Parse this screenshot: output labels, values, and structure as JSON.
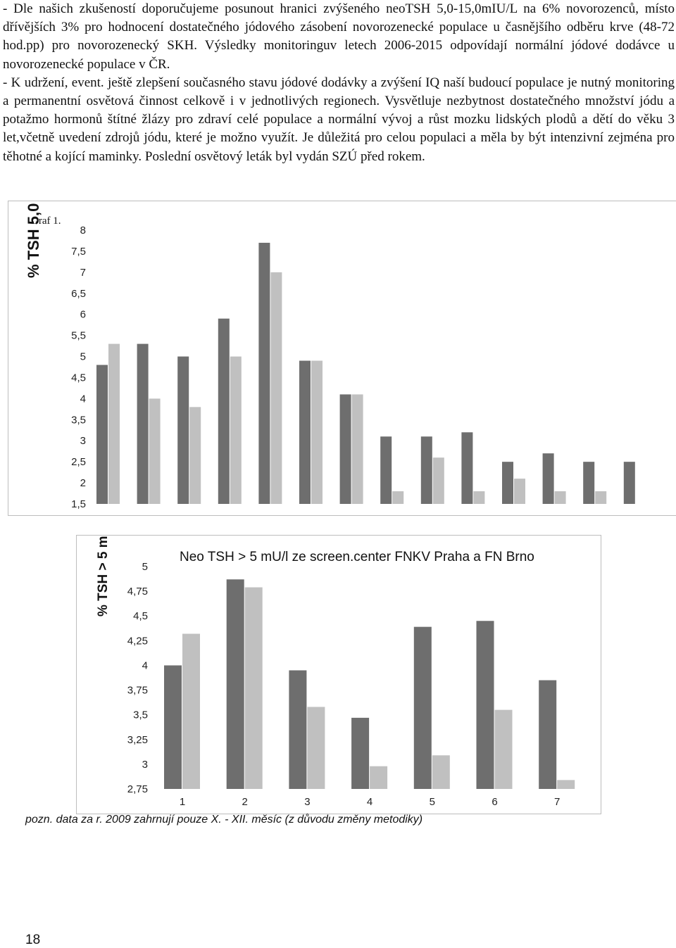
{
  "paragraphs": {
    "p1": "- Dle našich zkušeností doporučujeme posunout hranici zvýšeného neoTSH 5,0-15,0mIU/L na 6% novorozenců, místo dřívějších 3% pro hodnocení dostatečného jódového zásobení novorozenecké populace u časnějšího odběru krve (48-72 hod.pp) pro novorozenecký SKH. Výsledky monitoringuv letech 2006-2015 odpovídají normální jódové dodávce u novorozenecké populace v ČR.",
    "p2": "- K udržení, event. ještě zlepšení současného stavu jódové dodávky a zvýšení IQ naší budoucí populace je nutný monitoring a permanentní osvětová činnost celkově i v jednotlivých regionech. Vysvětluje nezbytnost dostatečného množství jódu a potažmo hormonů štítné žlázy pro zdraví celé populace a normální vývoj a růst mozku lidských plodů a dětí do věku 3 let,včetně uvedení zdrojů jódu, které je možno využít. Je důležitá pro celou populaci a měla by být intenzivní zejména pro těhotné a kojící maminky. Poslední osvětový leták byl vydán SZÚ před rokem."
  },
  "chart1_caption": "Graf 1.",
  "colors": {
    "dark_bar": "#6e6e6e",
    "light_bar": "#c0c0c0",
    "frame": "#bdbdbd"
  },
  "chart_data": [
    {
      "type": "bar",
      "ylabel": "% TSH 5,0",
      "yticks": [
        "8",
        "7,5",
        "7",
        "6,5",
        "6",
        "5,5",
        "5",
        "4,5",
        "4",
        "3,5",
        "3",
        "2,5",
        "2",
        "1,5"
      ],
      "ylim": [
        1.5,
        8
      ],
      "series": [
        {
          "values": [
            4.8,
            5.3,
            5.0,
            5.9,
            7.7,
            4.9,
            4.1,
            3.1,
            3.1,
            3.2,
            2.5,
            2.7,
            2.5,
            2.5
          ]
        },
        {
          "values": [
            5.3,
            4.0,
            3.8,
            5.0,
            7.0,
            4.9,
            4.1,
            1.8,
            2.6,
            1.8,
            2.1,
            1.8,
            1.8,
            null
          ]
        }
      ]
    },
    {
      "type": "bar",
      "title": "Neo TSH > 5 mU/l ze screen.center FNKV Praha a FN Brno",
      "ylabel": "% TSH > 5 m",
      "categories": [
        "1",
        "2",
        "3",
        "4",
        "5",
        "6",
        "7"
      ],
      "yticks": [
        "5",
        "4,75",
        "4,5",
        "4,25",
        "4",
        "3,75",
        "3,5",
        "3,25",
        "3",
        "2,75"
      ],
      "ylim": [
        2.75,
        5
      ],
      "series": [
        {
          "values": [
            4.0,
            4.87,
            3.95,
            3.47,
            4.39,
            4.45,
            3.85
          ]
        },
        {
          "values": [
            4.32,
            4.79,
            3.58,
            2.98,
            3.09,
            3.55,
            2.84
          ]
        }
      ]
    }
  ],
  "note": "pozn. data za r. 2009 zahrnují pouze X. - XII. měsíc (z důvodu změny metodiky)",
  "page_number": "18"
}
